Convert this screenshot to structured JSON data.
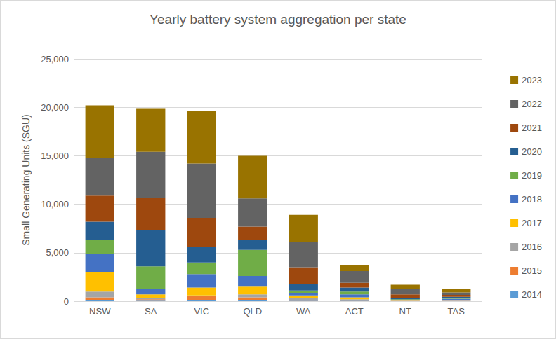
{
  "chart_data": {
    "type": "bar",
    "stacked": true,
    "orientation": "vertical",
    "title": "Yearly battery system aggregation per state",
    "y_label": "Small Generating Units (SGU)",
    "categories": [
      "NSW",
      "SA",
      "VIC",
      "QLD",
      "WA",
      "ACT",
      "NT",
      "TAS"
    ],
    "series": [
      {
        "name": "2014",
        "color": "#5B9BD5",
        "values": [
          100,
          50,
          100,
          100,
          50,
          50,
          20,
          20
        ]
      },
      {
        "name": "2015",
        "color": "#ED7D31",
        "values": [
          300,
          150,
          400,
          300,
          100,
          50,
          20,
          20
        ]
      },
      {
        "name": "2016",
        "color": "#A5A5A5",
        "values": [
          600,
          150,
          100,
          300,
          150,
          100,
          20,
          40
        ]
      },
      {
        "name": "2017",
        "color": "#FFC000",
        "values": [
          2000,
          350,
          800,
          800,
          300,
          200,
          40,
          70
        ]
      },
      {
        "name": "2018",
        "color": "#4472C4",
        "values": [
          1900,
          600,
          1400,
          1100,
          200,
          300,
          50,
          100
        ]
      },
      {
        "name": "2019",
        "color": "#70AD47",
        "values": [
          1400,
          2300,
          1200,
          2700,
          300,
          300,
          50,
          100
        ]
      },
      {
        "name": "2020",
        "color": "#255E91",
        "values": [
          1900,
          3700,
          1600,
          1000,
          700,
          400,
          100,
          100
        ]
      },
      {
        "name": "2021",
        "color": "#9E480E",
        "values": [
          2700,
          3400,
          3000,
          1400,
          1700,
          500,
          400,
          200
        ]
      },
      {
        "name": "2022",
        "color": "#636363",
        "values": [
          3900,
          4700,
          5600,
          2900,
          2600,
          1200,
          600,
          250
        ]
      },
      {
        "name": "2023",
        "color": "#997300",
        "values": [
          5400,
          4500,
          5400,
          4400,
          2800,
          600,
          400,
          350
        ]
      }
    ],
    "ylim": [
      0,
      25000
    ],
    "yticks": [
      0,
      {
        "value": 5000,
        "label": "5,000"
      },
      {
        "value": 10000,
        "label": "10,000"
      },
      {
        "value": 15000,
        "label": "15,000"
      },
      {
        "value": 20000,
        "label": "20,000"
      },
      {
        "value": 25000,
        "label": "25,000"
      }
    ],
    "grid": true,
    "legend": "right"
  }
}
